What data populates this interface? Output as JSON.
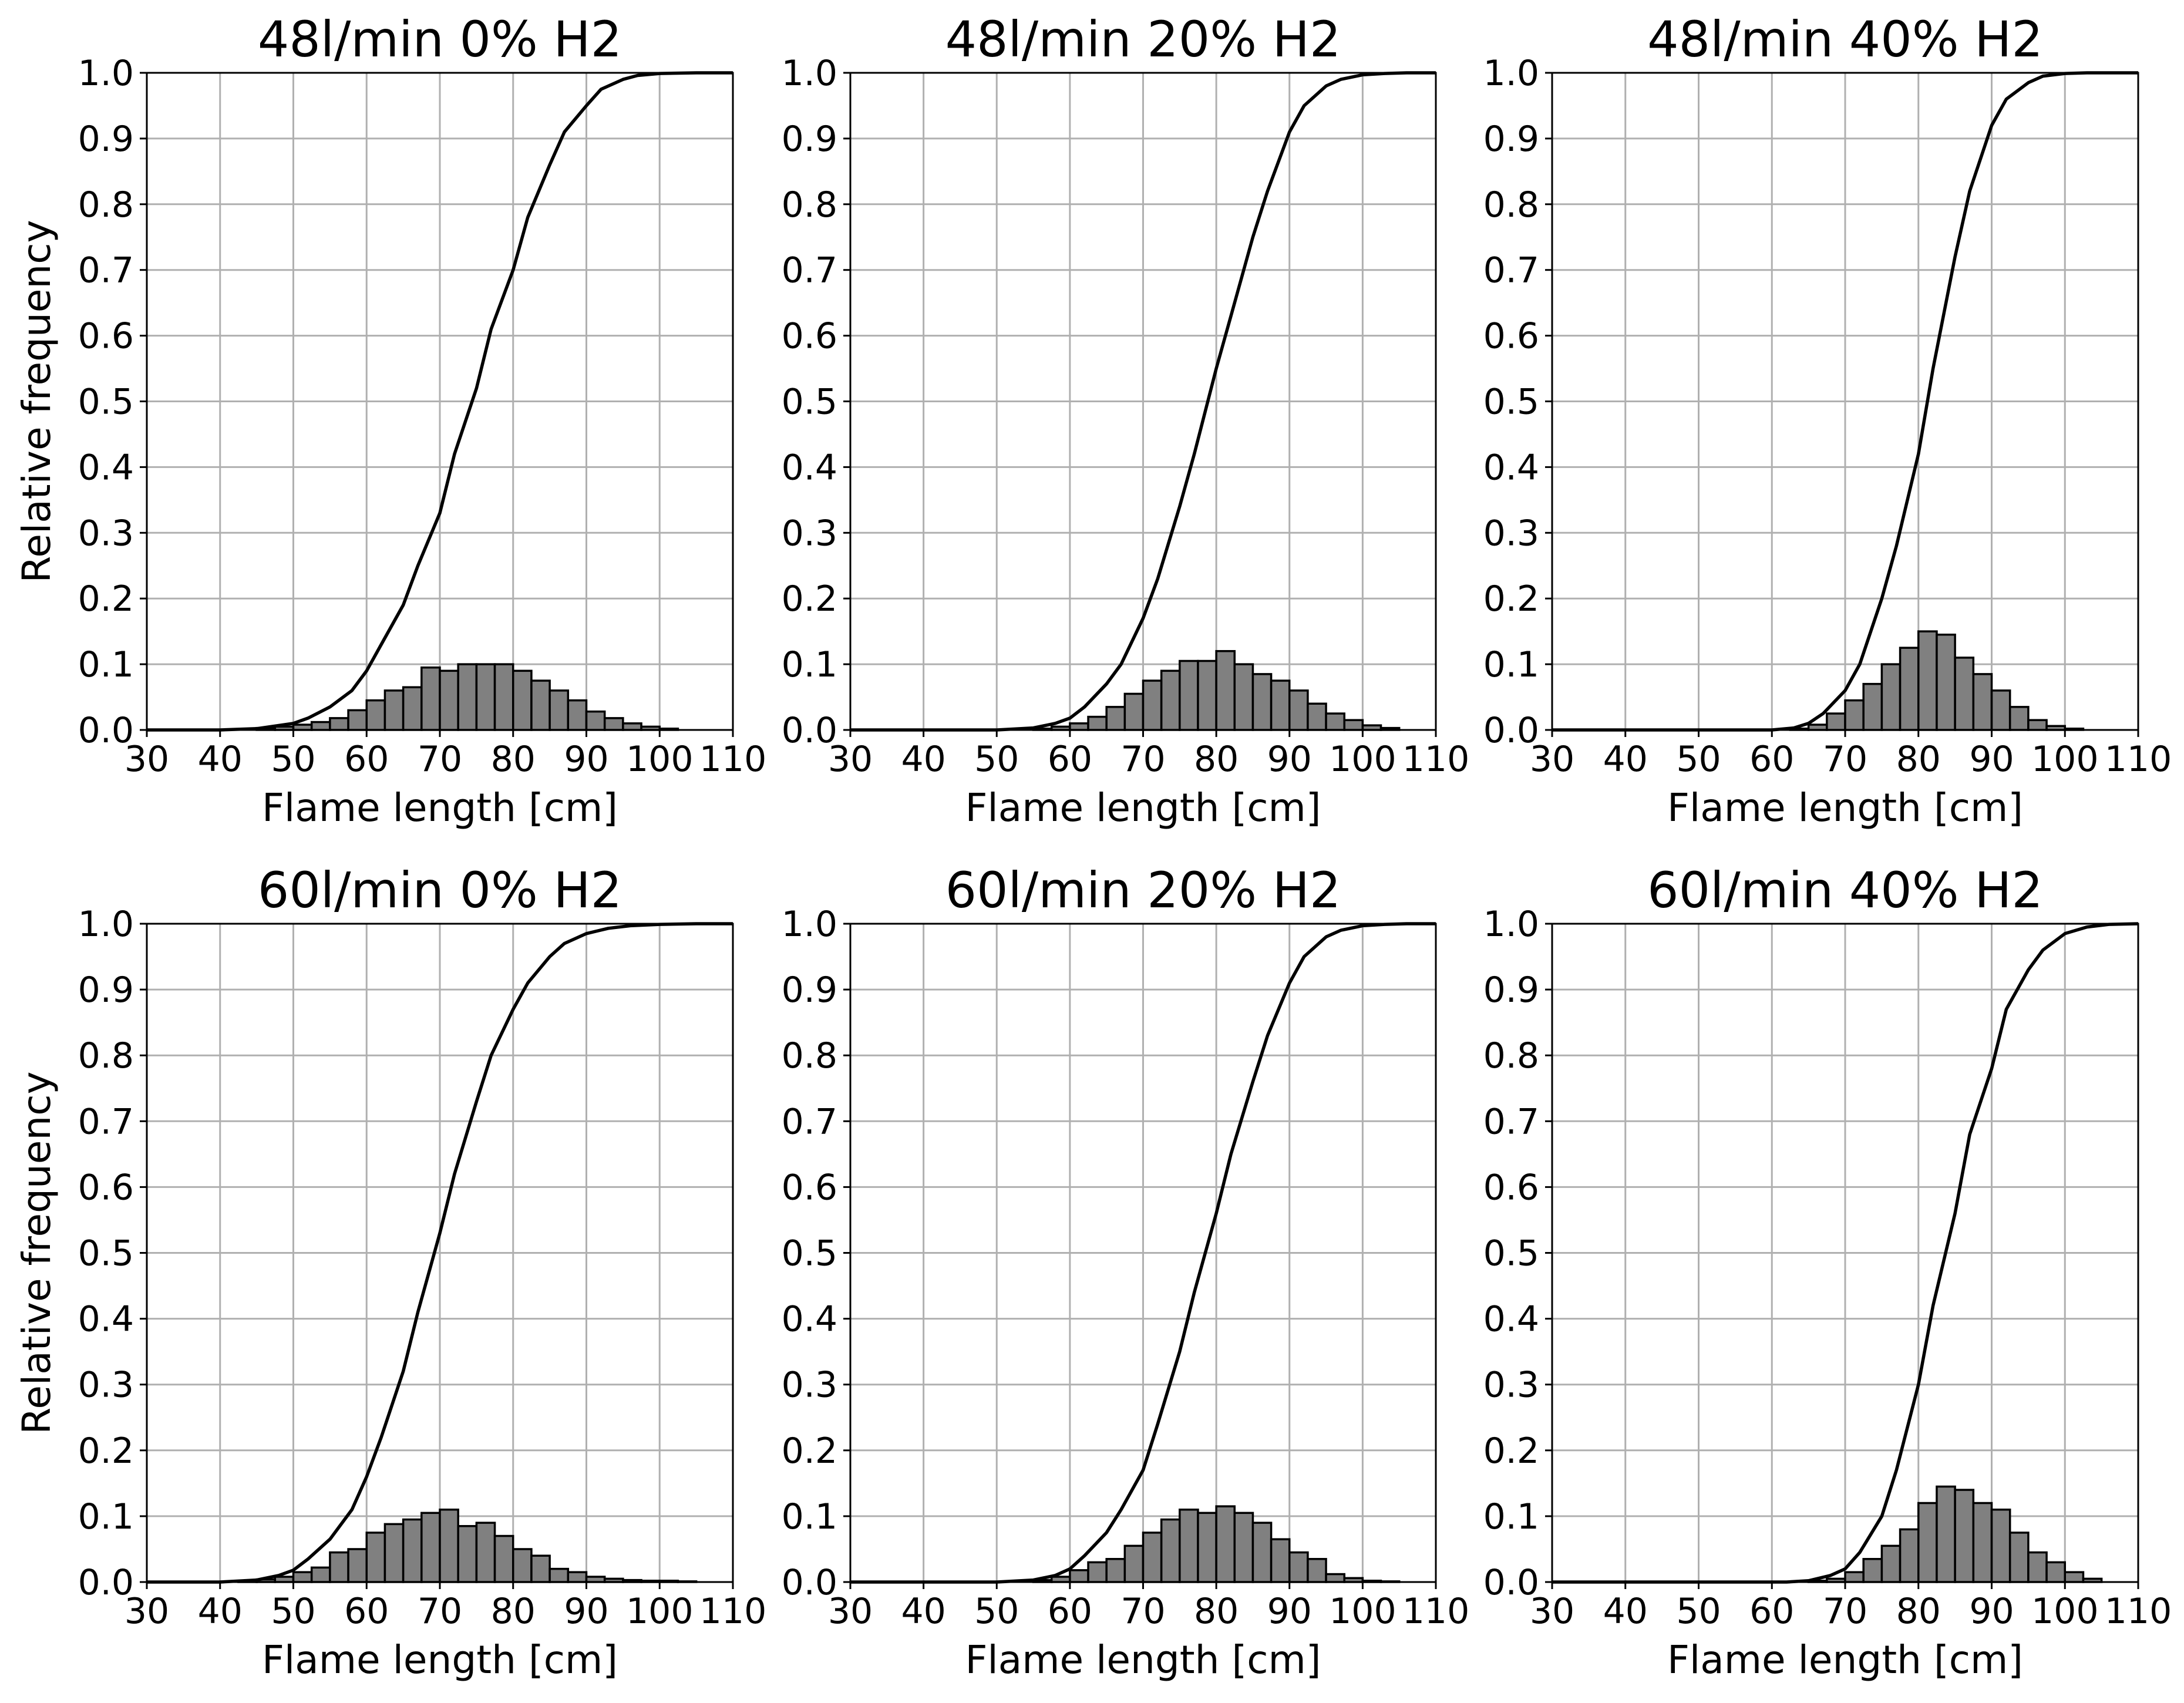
{
  "chart_data": [
    {
      "type": "bar",
      "subtype": "histogram with cumulative line",
      "title": "48l/min 0% H2",
      "xlabel": "Flame length [cm]",
      "ylabel": "Relative frequency",
      "xlim": [
        30,
        110
      ],
      "ylim": [
        0,
        1.0
      ],
      "xticks": [
        "30",
        "40",
        "50",
        "60",
        "70",
        "80",
        "90",
        "100",
        "110"
      ],
      "yticks": [
        "0.0",
        "0.1",
        "0.2",
        "0.3",
        "0.4",
        "0.5",
        "0.6",
        "0.7",
        "0.8",
        "0.9",
        "1.0"
      ],
      "grid": true,
      "bin_width": 2.5,
      "bins_start": [
        45,
        47.5,
        50,
        52.5,
        55,
        57.5,
        60,
        62.5,
        65,
        67.5,
        70,
        72.5,
        75,
        77.5,
        80,
        82.5,
        85,
        87.5,
        90,
        92.5,
        95,
        97.5,
        100
      ],
      "values": [
        0.003,
        0.005,
        0.008,
        0.012,
        0.018,
        0.03,
        0.045,
        0.06,
        0.065,
        0.095,
        0.09,
        0.1,
        0.1,
        0.1,
        0.09,
        0.075,
        0.06,
        0.045,
        0.028,
        0.018,
        0.01,
        0.005,
        0.002
      ],
      "cumulative_series": {
        "name": "Cumulative",
        "x": [
          30,
          40,
          45,
          50,
          52,
          55,
          58,
          60,
          62,
          65,
          67,
          70,
          72,
          75,
          77,
          80,
          82,
          85,
          87,
          90,
          92,
          95,
          97,
          100,
          105,
          110
        ],
        "y": [
          0,
          0,
          0.002,
          0.01,
          0.018,
          0.035,
          0.06,
          0.09,
          0.13,
          0.19,
          0.25,
          0.33,
          0.42,
          0.52,
          0.61,
          0.7,
          0.78,
          0.86,
          0.91,
          0.95,
          0.975,
          0.99,
          0.996,
          0.999,
          1,
          1
        ]
      }
    },
    {
      "type": "bar",
      "subtype": "histogram with cumulative line",
      "title": "48l/min 20% H2",
      "xlabel": "Flame length [cm]",
      "ylabel": "",
      "xlim": [
        30,
        110
      ],
      "ylim": [
        0,
        1.0
      ],
      "xticks": [
        "30",
        "40",
        "50",
        "60",
        "70",
        "80",
        "90",
        "100",
        "110"
      ],
      "yticks": [
        "0.0",
        "0.1",
        "0.2",
        "0.3",
        "0.4",
        "0.5",
        "0.6",
        "0.7",
        "0.8",
        "0.9",
        "1.0"
      ],
      "grid": true,
      "bin_width": 2.5,
      "bins_start": [
        55,
        57.5,
        60,
        62.5,
        65,
        67.5,
        70,
        72.5,
        75,
        77.5,
        80,
        82.5,
        85,
        87.5,
        90,
        92.5,
        95,
        97.5,
        100,
        102.5
      ],
      "values": [
        0.002,
        0.005,
        0.01,
        0.02,
        0.035,
        0.055,
        0.075,
        0.09,
        0.105,
        0.105,
        0.12,
        0.1,
        0.085,
        0.075,
        0.06,
        0.04,
        0.025,
        0.015,
        0.007,
        0.003
      ],
      "cumulative_series": {
        "name": "Cumulative",
        "x": [
          30,
          50,
          55,
          58,
          60,
          62,
          65,
          67,
          70,
          72,
          75,
          77,
          80,
          82,
          85,
          87,
          90,
          92,
          95,
          97,
          100,
          103,
          106,
          110
        ],
        "y": [
          0,
          0,
          0.003,
          0.01,
          0.018,
          0.035,
          0.07,
          0.1,
          0.17,
          0.23,
          0.34,
          0.42,
          0.55,
          0.63,
          0.75,
          0.82,
          0.91,
          0.95,
          0.98,
          0.99,
          0.997,
          0.999,
          1,
          1
        ]
      }
    },
    {
      "type": "bar",
      "subtype": "histogram with cumulative line",
      "title": "48l/min 40% H2",
      "xlabel": "Flame length [cm]",
      "ylabel": "",
      "xlim": [
        30,
        110
      ],
      "ylim": [
        0,
        1.0
      ],
      "xticks": [
        "30",
        "40",
        "50",
        "60",
        "70",
        "80",
        "90",
        "100",
        "110"
      ],
      "yticks": [
        "0.0",
        "0.1",
        "0.2",
        "0.3",
        "0.4",
        "0.5",
        "0.6",
        "0.7",
        "0.8",
        "0.9",
        "1.0"
      ],
      "grid": true,
      "bin_width": 2.5,
      "bins_start": [
        62.5,
        65,
        67.5,
        70,
        72.5,
        75,
        77.5,
        80,
        82.5,
        85,
        87.5,
        90,
        92.5,
        95,
        97.5,
        100
      ],
      "values": [
        0.002,
        0.008,
        0.025,
        0.045,
        0.07,
        0.1,
        0.125,
        0.15,
        0.145,
        0.11,
        0.085,
        0.06,
        0.035,
        0.015,
        0.006,
        0.002
      ],
      "cumulative_series": {
        "name": "Cumulative",
        "x": [
          30,
          60,
          63,
          65,
          67,
          70,
          72,
          75,
          77,
          80,
          82,
          85,
          87,
          90,
          92,
          95,
          97,
          100,
          103,
          106,
          110
        ],
        "y": [
          0,
          0,
          0.003,
          0.01,
          0.025,
          0.06,
          0.1,
          0.2,
          0.28,
          0.42,
          0.55,
          0.72,
          0.82,
          0.92,
          0.96,
          0.985,
          0.995,
          0.999,
          1,
          1,
          1
        ]
      }
    },
    {
      "type": "bar",
      "subtype": "histogram with cumulative line",
      "title": "60l/min 0% H2",
      "xlabel": "Flame length [cm]",
      "ylabel": "Relative frequency",
      "xlim": [
        30,
        110
      ],
      "ylim": [
        0,
        1.0
      ],
      "xticks": [
        "30",
        "40",
        "50",
        "60",
        "70",
        "80",
        "90",
        "100",
        "110"
      ],
      "yticks": [
        "0.0",
        "0.1",
        "0.2",
        "0.3",
        "0.4",
        "0.5",
        "0.6",
        "0.7",
        "0.8",
        "0.9",
        "1.0"
      ],
      "grid": true,
      "bin_width": 2.5,
      "bins_start": [
        42.5,
        45,
        47.5,
        50,
        52.5,
        55,
        57.5,
        60,
        62.5,
        65,
        67.5,
        70,
        72.5,
        75,
        77.5,
        80,
        82.5,
        85,
        87.5,
        90,
        92.5,
        95,
        97.5,
        100,
        102.5
      ],
      "values": [
        0.002,
        0.004,
        0.008,
        0.015,
        0.022,
        0.045,
        0.05,
        0.075,
        0.088,
        0.095,
        0.105,
        0.11,
        0.085,
        0.09,
        0.07,
        0.05,
        0.04,
        0.02,
        0.015,
        0.008,
        0.005,
        0.003,
        0.002,
        0.002,
        0.001
      ],
      "cumulative_series": {
        "name": "Cumulative",
        "x": [
          30,
          40,
          45,
          48,
          50,
          52,
          55,
          58,
          60,
          62,
          65,
          67,
          70,
          72,
          75,
          77,
          80,
          82,
          85,
          87,
          90,
          93,
          96,
          100,
          105,
          110
        ],
        "y": [
          0,
          0,
          0.003,
          0.01,
          0.018,
          0.035,
          0.065,
          0.11,
          0.16,
          0.22,
          0.32,
          0.41,
          0.53,
          0.62,
          0.73,
          0.8,
          0.87,
          0.91,
          0.95,
          0.97,
          0.985,
          0.993,
          0.997,
          0.999,
          1,
          1
        ]
      }
    },
    {
      "type": "bar",
      "subtype": "histogram with cumulative line",
      "title": "60l/min 20% H2",
      "xlabel": "Flame length [cm]",
      "ylabel": "",
      "xlim": [
        30,
        110
      ],
      "ylim": [
        0,
        1.0
      ],
      "xticks": [
        "30",
        "40",
        "50",
        "60",
        "70",
        "80",
        "90",
        "100",
        "110"
      ],
      "yticks": [
        "0.0",
        "0.1",
        "0.2",
        "0.3",
        "0.4",
        "0.5",
        "0.6",
        "0.7",
        "0.8",
        "0.9",
        "1.0"
      ],
      "grid": true,
      "bin_width": 2.5,
      "bins_start": [
        55,
        57.5,
        60,
        62.5,
        65,
        67.5,
        70,
        72.5,
        75,
        77.5,
        80,
        82.5,
        85,
        87.5,
        90,
        92.5,
        95,
        97.5,
        100,
        102.5
      ],
      "values": [
        0.003,
        0.008,
        0.018,
        0.03,
        0.035,
        0.055,
        0.075,
        0.095,
        0.11,
        0.105,
        0.115,
        0.105,
        0.09,
        0.065,
        0.045,
        0.035,
        0.012,
        0.006,
        0.002,
        0.001
      ],
      "cumulative_series": {
        "name": "Cumulative",
        "x": [
          30,
          50,
          55,
          58,
          60,
          62,
          65,
          67,
          70,
          72,
          75,
          77,
          80,
          82,
          85,
          87,
          90,
          92,
          95,
          97,
          100,
          103,
          106,
          110
        ],
        "y": [
          0,
          0,
          0.003,
          0.01,
          0.02,
          0.04,
          0.075,
          0.11,
          0.17,
          0.24,
          0.35,
          0.44,
          0.56,
          0.65,
          0.76,
          0.83,
          0.91,
          0.95,
          0.98,
          0.99,
          0.997,
          0.999,
          1,
          1
        ]
      }
    },
    {
      "type": "bar",
      "subtype": "histogram with cumulative line",
      "title": "60l/min 40% H2",
      "xlabel": "Flame length [cm]",
      "ylabel": "",
      "xlim": [
        30,
        110
      ],
      "ylim": [
        0,
        1.0
      ],
      "xticks": [
        "30",
        "40",
        "50",
        "60",
        "70",
        "80",
        "90",
        "100",
        "110"
      ],
      "yticks": [
        "0.0",
        "0.1",
        "0.2",
        "0.3",
        "0.4",
        "0.5",
        "0.6",
        "0.7",
        "0.8",
        "0.9",
        "1.0"
      ],
      "grid": true,
      "bin_width": 2.5,
      "bins_start": [
        65,
        67.5,
        70,
        72.5,
        75,
        77.5,
        80,
        82.5,
        85,
        87.5,
        90,
        92.5,
        95,
        97.5,
        100,
        102.5
      ],
      "values": [
        0.002,
        0.005,
        0.015,
        0.035,
        0.055,
        0.08,
        0.12,
        0.145,
        0.14,
        0.12,
        0.11,
        0.075,
        0.045,
        0.03,
        0.015,
        0.005
      ],
      "cumulative_series": {
        "name": "Cumulative",
        "x": [
          30,
          62,
          65,
          68,
          70,
          72,
          75,
          77,
          80,
          82,
          85,
          87,
          90,
          92,
          95,
          97,
          100,
          103,
          106,
          110
        ],
        "y": [
          0,
          0,
          0.002,
          0.01,
          0.02,
          0.045,
          0.1,
          0.17,
          0.3,
          0.42,
          0.56,
          0.68,
          0.78,
          0.87,
          0.93,
          0.96,
          0.985,
          0.995,
          0.999,
          1
        ]
      }
    }
  ]
}
